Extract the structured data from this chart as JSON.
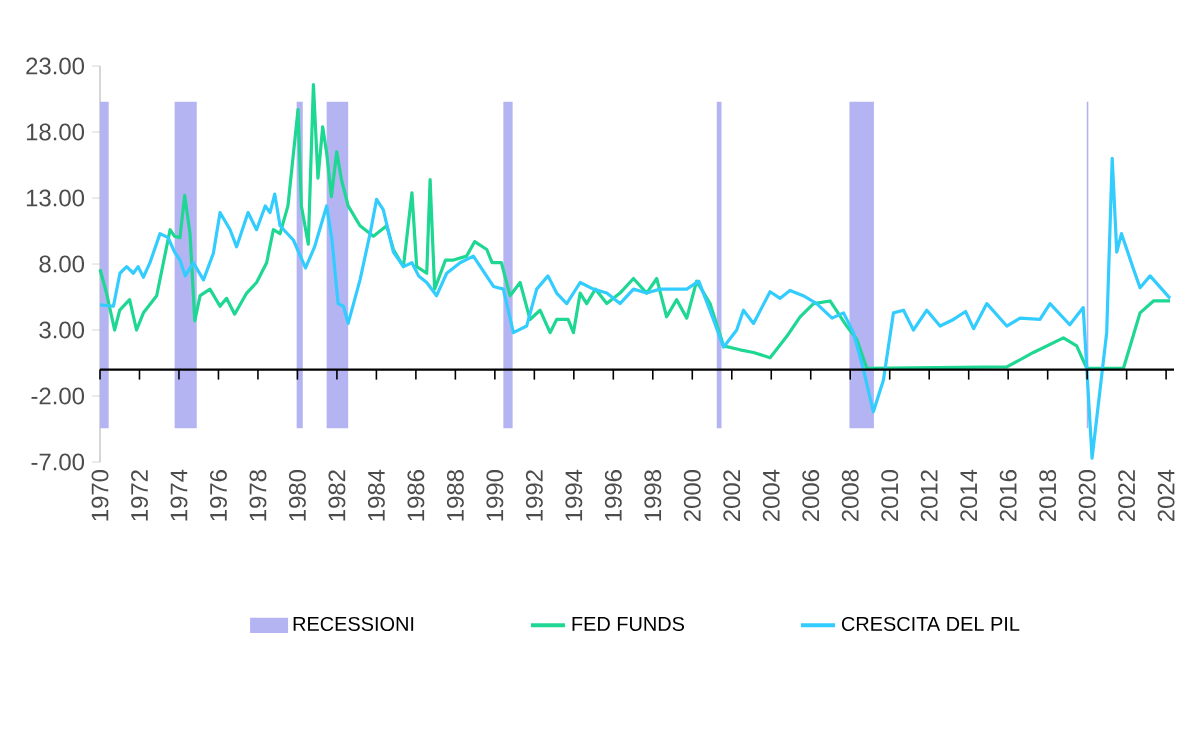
{
  "chart_data": {
    "type": "line",
    "xlim": [
      1970,
      2024.4
    ],
    "ylim": [
      -7,
      23
    ],
    "xticks": [
      1970,
      1972,
      1974,
      1976,
      1978,
      1980,
      1982,
      1984,
      1986,
      1988,
      1990,
      1992,
      1994,
      1996,
      1998,
      2000,
      2002,
      2004,
      2006,
      2008,
      2010,
      2012,
      2014,
      2016,
      2018,
      2020,
      2022,
      2024
    ],
    "yticks": [
      {
        "value": 23,
        "label": "23.00"
      },
      {
        "value": 18,
        "label": "18.00"
      },
      {
        "value": 13,
        "label": "13.00"
      },
      {
        "value": 8,
        "label": "8.00"
      },
      {
        "value": 3,
        "label": "3.00"
      },
      {
        "value": -2,
        "label": "-2.00"
      },
      {
        "value": -7,
        "label": "-7.00"
      }
    ],
    "legend": "bottom",
    "ref_lines": [
      {
        "axis": "y",
        "value": 0,
        "color": "#000000"
      }
    ],
    "bands": [
      {
        "axis": "x",
        "from": 1970.0,
        "to": 1970.44,
        "label": "RECESSIONI",
        "color": "#b4b4f2"
      },
      {
        "axis": "x",
        "from": 1973.78,
        "to": 1974.9,
        "color": "#b4b4f2"
      },
      {
        "axis": "x",
        "from": 1979.96,
        "to": 1980.27,
        "color": "#b4b4f2"
      },
      {
        "axis": "x",
        "from": 1981.48,
        "to": 1982.57,
        "color": "#b4b4f2"
      },
      {
        "axis": "x",
        "from": 1990.43,
        "to": 1990.9,
        "color": "#b4b4f2"
      },
      {
        "axis": "x",
        "from": 2001.24,
        "to": 2001.48,
        "color": "#b4b4f2"
      },
      {
        "axis": "x",
        "from": 2007.96,
        "to": 2009.2,
        "color": "#b4b4f2"
      },
      {
        "axis": "x",
        "from": 2019.98,
        "to": 2020.06,
        "color": "#b4b4f2"
      }
    ],
    "series": [
      {
        "name": "FED FUNDS",
        "color": "#1ed792",
        "x": [
          1970.0,
          1970.33,
          1970.74,
          1971.0,
          1971.5,
          1971.85,
          1972.2,
          1972.87,
          1973.55,
          1973.78,
          1974.05,
          1974.29,
          1974.56,
          1974.8,
          1975.07,
          1975.57,
          1976.08,
          1976.41,
          1976.82,
          1977.43,
          1977.93,
          1978.44,
          1978.78,
          1979.12,
          1979.52,
          1980.03,
          1980.2,
          1980.55,
          1980.81,
          1981.04,
          1981.28,
          1981.48,
          1981.72,
          1981.99,
          1982.23,
          1982.57,
          1983.17,
          1983.85,
          1984.52,
          1984.86,
          1985.37,
          1985.8,
          1986.04,
          1986.55,
          1986.72,
          1986.95,
          1987.5,
          1987.9,
          1988.57,
          1988.98,
          1989.59,
          1989.86,
          1990.33,
          1990.77,
          1991.28,
          1991.78,
          1992.29,
          1992.8,
          1993.13,
          1993.71,
          1993.98,
          1994.32,
          1994.65,
          1995.09,
          1995.67,
          1996.34,
          1997.02,
          1997.69,
          1998.2,
          1998.7,
          1999.21,
          1999.72,
          2000.22,
          2000.9,
          2001.58,
          2002.42,
          2003.1,
          2003.94,
          2004.78,
          2005.46,
          2006.14,
          2006.98,
          2007.82,
          2008.33,
          2008.84,
          2015.93,
          2017.28,
          2018.8,
          2019.47,
          2019.98,
          2021.84,
          2022.68,
          2023.36,
          2024.2
        ],
        "values": [
          7.6,
          5.8,
          3.0,
          4.5,
          5.3,
          3.0,
          4.3,
          5.6,
          10.6,
          10.1,
          10.0,
          13.2,
          10.3,
          3.7,
          5.6,
          6.1,
          4.8,
          5.4,
          4.2,
          5.8,
          6.6,
          8.1,
          10.6,
          10.3,
          12.4,
          19.7,
          12.4,
          9.5,
          21.6,
          14.5,
          18.4,
          16.4,
          13.1,
          16.5,
          14.4,
          12.4,
          10.9,
          10.1,
          10.9,
          9.1,
          7.8,
          13.4,
          7.8,
          7.3,
          14.4,
          6.1,
          8.3,
          8.3,
          8.6,
          9.7,
          9.1,
          8.1,
          8.1,
          5.6,
          6.6,
          3.8,
          4.5,
          2.8,
          3.8,
          3.8,
          2.8,
          5.8,
          5.0,
          6.1,
          5.0,
          5.8,
          6.9,
          5.8,
          6.9,
          4.0,
          5.3,
          3.9,
          6.7,
          5.0,
          1.8,
          1.5,
          1.3,
          0.9,
          2.5,
          4.0,
          5.0,
          5.2,
          3.3,
          2.3,
          0.1,
          0.2,
          1.3,
          2.4,
          1.8,
          0.1,
          0.1,
          4.3,
          5.2,
          5.2
        ]
      },
      {
        "name": "CRESCITA DEL PIL",
        "color": "#33ccff",
        "x": [
          1970.0,
          1970.68,
          1971.01,
          1971.35,
          1971.69,
          1971.93,
          1972.2,
          1972.53,
          1973.04,
          1973.45,
          1973.78,
          1974.05,
          1974.32,
          1974.73,
          1975.24,
          1975.74,
          1976.08,
          1976.59,
          1976.92,
          1977.5,
          1977.93,
          1978.37,
          1978.61,
          1978.85,
          1979.12,
          1979.8,
          1980.41,
          1980.87,
          1981.48,
          1981.75,
          1982.06,
          1982.33,
          1982.57,
          1983.17,
          1983.68,
          1984.01,
          1984.35,
          1984.86,
          1985.37,
          1985.8,
          1986.14,
          1986.55,
          1987.05,
          1987.56,
          1988.24,
          1988.91,
          1989.93,
          1990.43,
          1990.94,
          1991.61,
          1992.12,
          1992.69,
          1993.13,
          1993.64,
          1994.32,
          1994.99,
          1995.67,
          1996.34,
          1997.02,
          1997.69,
          1998.37,
          1999.04,
          1999.72,
          2000.33,
          2001.07,
          2001.58,
          2002.25,
          2002.59,
          2003.1,
          2003.94,
          2004.45,
          2004.95,
          2005.62,
          2006.3,
          2007.08,
          2007.66,
          2008.16,
          2008.67,
          2009.17,
          2009.68,
          2010.19,
          2010.7,
          2011.2,
          2011.88,
          2012.55,
          2013.23,
          2013.84,
          2014.25,
          2014.92,
          2015.93,
          2016.6,
          2017.61,
          2018.12,
          2019.12,
          2019.8,
          2020.25,
          2020.99,
          2021.27,
          2021.5,
          2021.74,
          2022.35,
          2022.68,
          2023.19,
          2024.2
        ],
        "values": [
          4.9,
          4.8,
          7.3,
          7.8,
          7.3,
          7.8,
          7.0,
          8.1,
          10.3,
          10.0,
          8.9,
          8.3,
          7.1,
          8.1,
          6.8,
          8.8,
          11.9,
          10.6,
          9.3,
          11.9,
          10.6,
          12.4,
          11.9,
          13.3,
          10.9,
          9.8,
          7.7,
          9.3,
          12.4,
          9.8,
          5.0,
          4.8,
          3.5,
          6.8,
          10.3,
          12.9,
          12.1,
          8.9,
          7.8,
          8.1,
          7.1,
          6.6,
          5.6,
          7.3,
          8.1,
          8.6,
          6.3,
          6.1,
          2.8,
          3.3,
          6.1,
          7.1,
          5.8,
          5.0,
          6.6,
          6.1,
          5.8,
          5.0,
          6.1,
          5.8,
          6.1,
          6.1,
          6.1,
          6.7,
          3.8,
          1.7,
          3.0,
          4.5,
          3.5,
          5.9,
          5.4,
          6.0,
          5.6,
          5.0,
          3.9,
          4.3,
          2.8,
          0.0,
          -3.2,
          -0.8,
          4.3,
          4.5,
          3.0,
          4.5,
          3.3,
          3.8,
          4.4,
          3.1,
          5.0,
          3.3,
          3.9,
          3.8,
          5.0,
          3.4,
          4.7,
          -6.7,
          2.8,
          16.0,
          8.9,
          10.3,
          7.6,
          6.2,
          7.1,
          5.4
        ]
      }
    ]
  }
}
